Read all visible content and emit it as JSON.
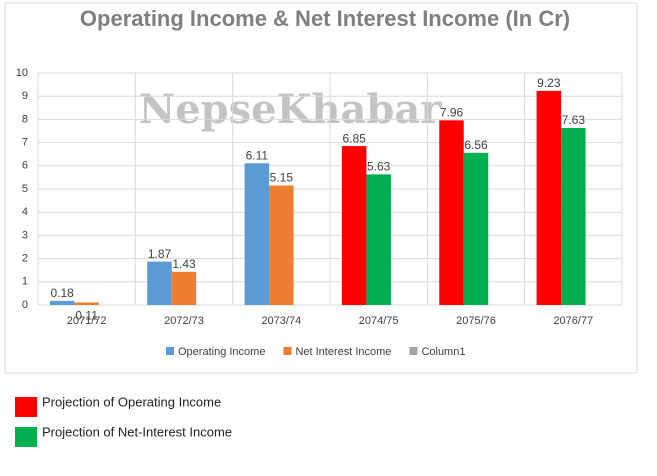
{
  "chart_data": {
    "type": "bar",
    "title": "Operating Income & Net Interest Income (In Cr)",
    "watermark": "NepseKhabar",
    "categories": [
      "2071/72",
      "2072/73",
      "2073/74",
      "2074/75",
      "2075/76",
      "2076/77"
    ],
    "series": [
      {
        "name": "Operating Income",
        "color": "#5b9bd5",
        "point_colors": [
          "#5b9bd5",
          "#5b9bd5",
          "#5b9bd5",
          "#ff0000",
          "#ff0000",
          "#ff0000"
        ],
        "values": [
          0.18,
          1.87,
          6.11,
          6.85,
          7.96,
          9.23
        ]
      },
      {
        "name": "Net Interest Income",
        "color": "#ed7d31",
        "point_colors": [
          "#ed7d31",
          "#ed7d31",
          "#ed7d31",
          "#00b050",
          "#00b050",
          "#00b050"
        ],
        "values": [
          0.11,
          1.43,
          5.15,
          5.63,
          6.56,
          7.63
        ]
      },
      {
        "name": "Column1",
        "color": "#a5a5a5",
        "values": [
          null,
          null,
          null,
          null,
          null,
          null
        ]
      }
    ],
    "ylim": [
      0,
      10
    ],
    "yticks": [
      0,
      1,
      2,
      3,
      4,
      5,
      6,
      7,
      8,
      9,
      10
    ],
    "grid": true,
    "legend": "bottom"
  },
  "key": [
    {
      "label": "Projection of Operating Income",
      "color": "#ff0000"
    },
    {
      "label": "Projection of Net-Interest Income",
      "color": "#00b050"
    }
  ]
}
